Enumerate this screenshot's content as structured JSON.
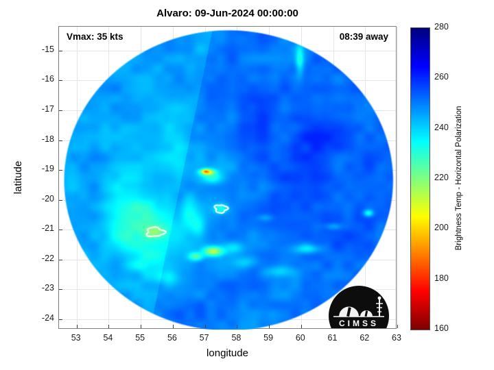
{
  "figure": {
    "title": "Alvaro: 09-Jun-2024 00:00:00"
  },
  "overlay": {
    "vmax_label": "Vmax: 35 kts",
    "eta_label": "08:39 away"
  },
  "logo": {
    "text": "CIMSS"
  },
  "chart_data": {
    "type": "heatmap",
    "title": "Alvaro: 09-Jun-2024 00:00:00",
    "xlabel": "longitude",
    "ylabel": "latitude",
    "xlim": [
      52.45,
      63.0
    ],
    "ylim": [
      -24.35,
      -14.2
    ],
    "xticks": [
      53,
      54,
      55,
      56,
      57,
      58,
      59,
      60,
      61,
      62,
      63
    ],
    "yticks": [
      -15,
      -16,
      -17,
      -18,
      -19,
      -20,
      -21,
      -22,
      -23,
      -24
    ],
    "grid": true,
    "colorbar": {
      "label": "Brightness Temp - Horizontal Polarization",
      "min": 160,
      "max": 280,
      "ticks": [
        280,
        260,
        240,
        220,
        200,
        180,
        160
      ],
      "colormap": "jet-reversed"
    },
    "swath": {
      "center_lon": 57.74,
      "center_lat": -19.35,
      "radius_lon": 5.15,
      "radius_lat": 5.05,
      "base_value": 250
    },
    "features": [
      [
        56.0,
        -19.0,
        2.0,
        2.6,
        -5
      ],
      [
        55.2,
        -21.3,
        1.1,
        0.9,
        -13
      ],
      [
        54.6,
        -20.3,
        0.8,
        0.8,
        -8
      ],
      [
        60.3,
        -17.8,
        2.0,
        2.2,
        7
      ],
      [
        61.3,
        -21.3,
        1.3,
        1.2,
        5
      ],
      [
        57.6,
        -16.5,
        1.5,
        1.5,
        3
      ],
      [
        57.07,
        -19.07,
        0.22,
        0.1,
        -38
      ],
      [
        57.02,
        -19.04,
        0.1,
        0.06,
        -20
      ],
      [
        57.25,
        -19.25,
        0.35,
        0.22,
        -15
      ],
      [
        57.5,
        -20.3,
        0.22,
        0.16,
        -16
      ],
      [
        55.45,
        -21.08,
        0.3,
        0.2,
        -14
      ],
      [
        57.26,
        -21.73,
        0.3,
        0.16,
        -35
      ],
      [
        56.73,
        -21.9,
        0.22,
        0.14,
        -22
      ],
      [
        57.9,
        -21.6,
        0.35,
        0.2,
        -12
      ],
      [
        58.35,
        -22.1,
        0.4,
        0.2,
        -10
      ],
      [
        59.96,
        -15.3,
        0.13,
        0.5,
        -18
      ],
      [
        62.1,
        -20.45,
        0.16,
        0.12,
        -22
      ],
      [
        60.2,
        -21.65,
        0.45,
        0.16,
        -14
      ],
      [
        59.3,
        -22.4,
        0.5,
        0.18,
        -10
      ],
      [
        61.0,
        -20.9,
        0.3,
        0.12,
        -10
      ],
      [
        58.9,
        -20.6,
        0.25,
        0.12,
        -8
      ],
      [
        55.9,
        -22.6,
        0.4,
        0.25,
        -10
      ],
      [
        54.9,
        -22.2,
        0.3,
        0.2,
        -8
      ],
      [
        56.5,
        -20.4,
        0.28,
        0.55,
        -10
      ],
      [
        56.8,
        -20.9,
        0.2,
        0.3,
        -10
      ]
    ],
    "noise": [
      {
        "scale": 0.85,
        "amp": 7,
        "ox": 0,
        "oy": 0
      },
      {
        "scale": 0.33,
        "amp": 5,
        "ox": 11.7,
        "oy": 5.3
      }
    ],
    "seam": {
      "x1": 57.25,
      "y1": -14.25,
      "x2": 55.4,
      "y2": -23.8,
      "delta": -4
    },
    "contours": [
      [
        57.5,
        -20.3,
        0.19,
        0.13,
        0.6
      ],
      [
        55.45,
        -21.08,
        0.27,
        0.15,
        2.1
      ]
    ]
  }
}
